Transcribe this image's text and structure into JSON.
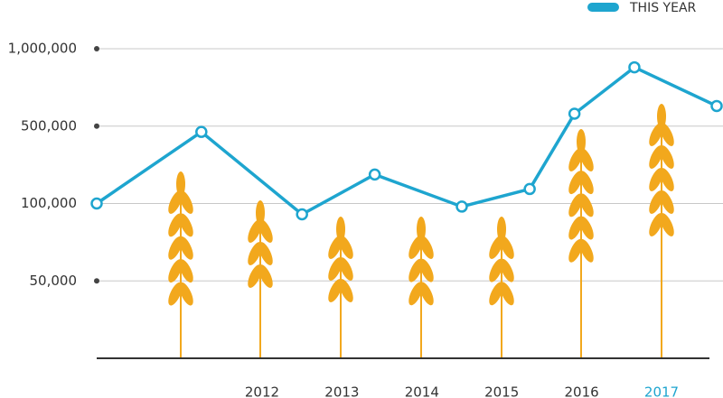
{
  "chart_data": {
    "type": "line",
    "x": [
      2009.93,
      2011.24,
      2012.5,
      2013.41,
      2014.5,
      2015.35,
      2015.91,
      2016.66,
      2017.69
    ],
    "series": [
      {
        "name": "THIS YEAR",
        "color": "#1ea5cf",
        "values": [
          100000,
          470000,
          93000,
          250000,
          98000,
          175000,
          580000,
          880000,
          630000
        ]
      }
    ],
    "xlim": [
      2009.93,
      2017.69
    ],
    "xticks": [
      2012,
      2013,
      2014,
      2015,
      2016,
      2017
    ],
    "ylim": [
      0,
      1000000
    ],
    "yticks": [
      {
        "value": 50000,
        "label": "50,000"
      },
      {
        "value": 100000,
        "label": "100,000"
      },
      {
        "value": 500000,
        "label": "500,000"
      },
      {
        "value": 1000000,
        "label": "1,000,000"
      }
    ],
    "grid": true,
    "legend": "top-right"
  }
}
